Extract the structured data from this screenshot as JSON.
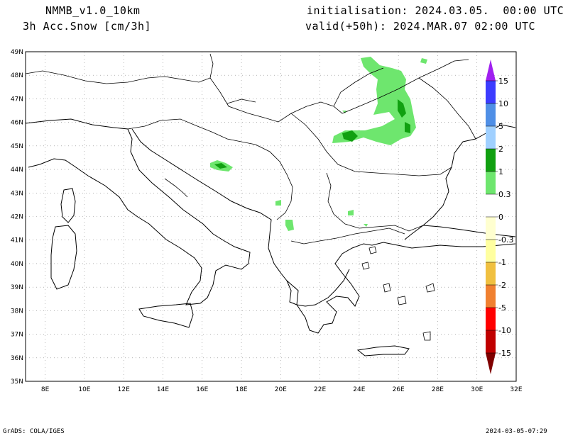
{
  "header": {
    "model": "NMMB_v1.0_10km",
    "field": "3h Acc.Snow [cm/3h]",
    "init": "initialisation: 2024.03.05.  00:00 UTC",
    "valid": "valid(+50h): 2024.MAR.07 02:00 UTC"
  },
  "map": {
    "lat_labels": [
      "49N",
      "48N",
      "47N",
      "46N",
      "45N",
      "44N",
      "43N",
      "42N",
      "41N",
      "40N",
      "39N",
      "38N",
      "37N",
      "36N",
      "35N"
    ],
    "lon_labels": [
      "8E",
      "10E",
      "12E",
      "14E",
      "16E",
      "18E",
      "20E",
      "22E",
      "24E",
      "26E",
      "28E",
      "30E",
      "32E"
    ],
    "lat_range": [
      35,
      49
    ],
    "lon_range": [
      7,
      32
    ],
    "grid": true
  },
  "colorbar": {
    "levels": [
      "15",
      "10",
      "5",
      "2",
      "1",
      "0.3",
      "0",
      "-0.3",
      "-1",
      "-2",
      "-5",
      "-10",
      "-15"
    ],
    "colors": [
      "#a020f0",
      "#3c3cff",
      "#4f8fe6",
      "#a0d0ff",
      "#11a011",
      "#6ee66e",
      "#ffffff",
      "#ffffd0",
      "#ffffa0",
      "#f0c040",
      "#f08030",
      "#ff0000",
      "#c00000",
      "#800000"
    ]
  },
  "footer": {
    "left": "GrADS: COLA/IGES",
    "right": "2024-03-05-07:29"
  }
}
